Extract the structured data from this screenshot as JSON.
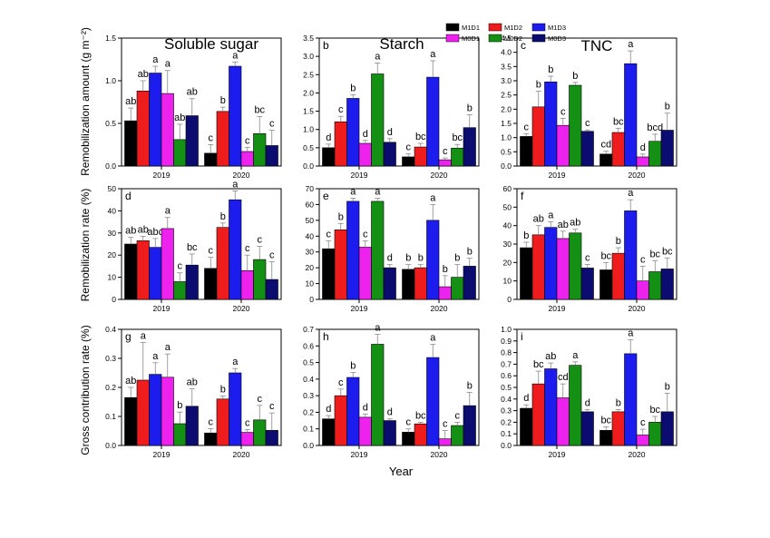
{
  "figure": {
    "ylabels": [
      "Remobilization amount (g m⁻²)",
      "Remobilization rate (%)",
      "Gross contribution rate (%)"
    ],
    "xlabel": "Year",
    "col_titles": [
      "Soluble sugar",
      "Starch",
      "TNC"
    ],
    "legend": [
      {
        "name": "M1D1",
        "color": "#000000"
      },
      {
        "name": "M1D2",
        "color": "#ee1c1c"
      },
      {
        "name": "M1D3",
        "color": "#1c1cee"
      },
      {
        "name": "M0D1",
        "color": "#ee22ee"
      },
      {
        "name": "M0D2",
        "color": "#149114"
      },
      {
        "name": "M0D3",
        "color": "#0b0b70"
      }
    ]
  },
  "chart_data": [
    {
      "type": "bar",
      "row": 0,
      "col": 0,
      "panel_letter": "",
      "categories": [
        "2019",
        "2020"
      ],
      "ylim": [
        0,
        1.5
      ],
      "yticks": [
        "0.0",
        "0.5",
        "1.0",
        "1.5"
      ],
      "series": [
        {
          "name": "M1D1",
          "values": [
            0.53,
            0.15
          ],
          "err": [
            0.15,
            0.1
          ],
          "labels": [
            "ab",
            "c"
          ]
        },
        {
          "name": "M1D2",
          "values": [
            0.88,
            0.64
          ],
          "err": [
            0.12,
            0.05
          ],
          "labels": [
            "ab",
            "b"
          ]
        },
        {
          "name": "M1D3",
          "values": [
            1.09,
            1.17
          ],
          "err": [
            0.08,
            0.05
          ],
          "labels": [
            "a",
            "a"
          ]
        },
        {
          "name": "M0D1",
          "values": [
            0.85,
            0.17
          ],
          "err": [
            0.27,
            0.05
          ],
          "labels": [
            "a",
            "c"
          ]
        },
        {
          "name": "M0D2",
          "values": [
            0.31,
            0.38
          ],
          "err": [
            0.18,
            0.2
          ],
          "labels": [
            "ab",
            "bc"
          ]
        },
        {
          "name": "M0D3",
          "values": [
            0.59,
            0.24
          ],
          "err": [
            0.2,
            0.18
          ],
          "labels": [
            "ab",
            "c"
          ]
        }
      ]
    },
    {
      "type": "bar",
      "row": 0,
      "col": 1,
      "panel_letter": "b",
      "categories": [
        "2019",
        "2020"
      ],
      "ylim": [
        0,
        3.5
      ],
      "yticks": [
        "0.0",
        "0.5",
        "1.0",
        "1.5",
        "2.0",
        "2.5",
        "3.0",
        "3.5"
      ],
      "series": [
        {
          "name": "M1D1",
          "values": [
            0.5,
            0.25
          ],
          "err": [
            0.1,
            0.08
          ],
          "labels": [
            "d",
            "c"
          ]
        },
        {
          "name": "M1D2",
          "values": [
            1.21,
            0.52
          ],
          "err": [
            0.15,
            0.1
          ],
          "labels": [
            "c",
            "bc"
          ]
        },
        {
          "name": "M1D3",
          "values": [
            1.85,
            2.43
          ],
          "err": [
            0.1,
            0.45
          ],
          "labels": [
            "b",
            "a"
          ]
        },
        {
          "name": "M0D1",
          "values": [
            0.62,
            0.17
          ],
          "err": [
            0.08,
            0.05
          ],
          "labels": [
            "d",
            "c"
          ]
        },
        {
          "name": "M0D2",
          "values": [
            2.52,
            0.49
          ],
          "err": [
            0.3,
            0.1
          ],
          "labels": [
            "a",
            "bc"
          ]
        },
        {
          "name": "M0D3",
          "values": [
            0.65,
            1.05
          ],
          "err": [
            0.1,
            0.35
          ],
          "labels": [
            "d",
            "b"
          ]
        }
      ]
    },
    {
      "type": "bar",
      "row": 0,
      "col": 2,
      "panel_letter": "c",
      "categories": [
        "2019",
        "2020"
      ],
      "ylim": [
        0,
        4.5
      ],
      "yticks": [
        "0.0",
        "0.5",
        "1.0",
        "1.5",
        "2.0",
        "2.5",
        "3.0",
        "3.5",
        "4.0",
        "4.5"
      ],
      "series": [
        {
          "name": "M1D1",
          "values": [
            1.04,
            0.42
          ],
          "err": [
            0.1,
            0.1
          ],
          "labels": [
            "c",
            "cd"
          ]
        },
        {
          "name": "M1D2",
          "values": [
            2.08,
            1.18
          ],
          "err": [
            0.55,
            0.15
          ],
          "labels": [
            "b",
            "bc"
          ]
        },
        {
          "name": "M1D3",
          "values": [
            2.96,
            3.6
          ],
          "err": [
            0.2,
            0.45
          ],
          "labels": [
            "b",
            "a"
          ]
        },
        {
          "name": "M0D1",
          "values": [
            1.43,
            0.32
          ],
          "err": [
            0.25,
            0.1
          ],
          "labels": [
            "c",
            "d"
          ]
        },
        {
          "name": "M0D2",
          "values": [
            2.84,
            0.87
          ],
          "err": [
            0.1,
            0.25
          ],
          "labels": [
            "b",
            "bcd"
          ]
        },
        {
          "name": "M0D3",
          "values": [
            1.22,
            1.26
          ],
          "err": [
            0.05,
            0.6
          ],
          "labels": [
            "c",
            "b"
          ]
        }
      ]
    },
    {
      "type": "bar",
      "row": 1,
      "col": 0,
      "panel_letter": "d",
      "categories": [
        "2019",
        "2020"
      ],
      "ylim": [
        0,
        50
      ],
      "yticks": [
        "0",
        "10",
        "20",
        "30",
        "40",
        "50"
      ],
      "series": [
        {
          "name": "M1D1",
          "values": [
            25,
            14
          ],
          "err": [
            3,
            5
          ],
          "labels": [
            "ab",
            "c"
          ]
        },
        {
          "name": "M1D2",
          "values": [
            26.5,
            32.5
          ],
          "err": [
            2,
            2
          ],
          "labels": [
            "ab",
            "b"
          ]
        },
        {
          "name": "M1D3",
          "values": [
            23.5,
            45
          ],
          "err": [
            4,
            4
          ],
          "labels": [
            "abc",
            "a"
          ]
        },
        {
          "name": "M0D1",
          "values": [
            32,
            13
          ],
          "err": [
            5,
            7
          ],
          "labels": [
            "a",
            "c"
          ]
        },
        {
          "name": "M0D2",
          "values": [
            8,
            18
          ],
          "err": [
            4,
            6
          ],
          "labels": [
            "c",
            "c"
          ]
        },
        {
          "name": "M0D3",
          "values": [
            15.5,
            9
          ],
          "err": [
            5,
            8
          ],
          "labels": [
            "bc",
            "c"
          ]
        }
      ]
    },
    {
      "type": "bar",
      "row": 1,
      "col": 1,
      "panel_letter": "e",
      "categories": [
        "2019",
        "2020"
      ],
      "ylim": [
        0,
        70
      ],
      "yticks": [
        "0",
        "10",
        "20",
        "30",
        "40",
        "50",
        "60",
        "70"
      ],
      "series": [
        {
          "name": "M1D1",
          "values": [
            32,
            19
          ],
          "err": [
            5,
            3
          ],
          "labels": [
            "c",
            "b"
          ]
        },
        {
          "name": "M1D2",
          "values": [
            44,
            20
          ],
          "err": [
            4,
            2
          ],
          "labels": [
            "b",
            "b"
          ]
        },
        {
          "name": "M1D3",
          "values": [
            62,
            50
          ],
          "err": [
            2,
            10
          ],
          "labels": [
            "a",
            "a"
          ]
        },
        {
          "name": "M0D1",
          "values": [
            33,
            8
          ],
          "err": [
            4,
            7
          ],
          "labels": [
            "c",
            "b"
          ]
        },
        {
          "name": "M0D2",
          "values": [
            62,
            14
          ],
          "err": [
            2,
            8
          ],
          "labels": [
            "a",
            "b"
          ]
        },
        {
          "name": "M0D3",
          "values": [
            20,
            21
          ],
          "err": [
            2,
            5
          ],
          "labels": [
            "d",
            "b"
          ]
        }
      ]
    },
    {
      "type": "bar",
      "row": 1,
      "col": 2,
      "panel_letter": "f",
      "categories": [
        "2019",
        "2020"
      ],
      "ylim": [
        0,
        60
      ],
      "yticks": [
        "0",
        "10",
        "20",
        "30",
        "40",
        "50",
        "60"
      ],
      "series": [
        {
          "name": "M1D1",
          "values": [
            28,
            16
          ],
          "err": [
            3,
            4
          ],
          "labels": [
            "b",
            "bc"
          ]
        },
        {
          "name": "M1D2",
          "values": [
            35,
            25
          ],
          "err": [
            5,
            3
          ],
          "labels": [
            "ab",
            "b"
          ]
        },
        {
          "name": "M1D3",
          "values": [
            39,
            48
          ],
          "err": [
            3,
            6
          ],
          "labels": [
            "a",
            "a"
          ]
        },
        {
          "name": "M0D1",
          "values": [
            33,
            10
          ],
          "err": [
            4,
            8
          ],
          "labels": [
            "ab",
            "c"
          ]
        },
        {
          "name": "M0D2",
          "values": [
            36,
            15
          ],
          "err": [
            2,
            6
          ],
          "labels": [
            "ab",
            "bc"
          ]
        },
        {
          "name": "M0D3",
          "values": [
            17,
            16.5
          ],
          "err": [
            2,
            6
          ],
          "labels": [
            "c",
            "bc"
          ]
        }
      ]
    },
    {
      "type": "bar",
      "row": 2,
      "col": 0,
      "panel_letter": "g",
      "categories": [
        "2019",
        "2020"
      ],
      "ylim": [
        0,
        0.4
      ],
      "yticks": [
        "0.0",
        "0.1",
        "0.2",
        "0.3",
        "0.4"
      ],
      "series": [
        {
          "name": "M1D1",
          "values": [
            0.165,
            0.043
          ],
          "err": [
            0.035,
            0.015
          ],
          "labels": [
            "ab",
            "c"
          ]
        },
        {
          "name": "M1D2",
          "values": [
            0.225,
            0.16
          ],
          "err": [
            0.13,
            0.01
          ],
          "labels": [
            "a",
            "b"
          ]
        },
        {
          "name": "M1D3",
          "values": [
            0.245,
            0.25
          ],
          "err": [
            0.04,
            0.015
          ],
          "labels": [
            "a",
            "a"
          ]
        },
        {
          "name": "M0D1",
          "values": [
            0.235,
            0.045
          ],
          "err": [
            0.08,
            0.01
          ],
          "labels": [
            "a",
            "c"
          ]
        },
        {
          "name": "M0D2",
          "values": [
            0.075,
            0.088
          ],
          "err": [
            0.04,
            0.05
          ],
          "labels": [
            "b",
            "c"
          ]
        },
        {
          "name": "M0D3",
          "values": [
            0.135,
            0.052
          ],
          "err": [
            0.06,
            0.06
          ],
          "labels": [
            "ab",
            "c"
          ]
        }
      ]
    },
    {
      "type": "bar",
      "row": 2,
      "col": 1,
      "panel_letter": "h",
      "categories": [
        "2019",
        "2020"
      ],
      "ylim": [
        0,
        0.7
      ],
      "yticks": [
        "0.0",
        "0.1",
        "0.2",
        "0.3",
        "0.4",
        "0.5",
        "0.6",
        "0.7"
      ],
      "series": [
        {
          "name": "M1D1",
          "values": [
            0.16,
            0.08
          ],
          "err": [
            0.02,
            0.02
          ],
          "labels": [
            "d",
            "c"
          ]
        },
        {
          "name": "M1D2",
          "values": [
            0.3,
            0.13
          ],
          "err": [
            0.04,
            0.01
          ],
          "labels": [
            "c",
            "bc"
          ]
        },
        {
          "name": "M1D3",
          "values": [
            0.41,
            0.53
          ],
          "err": [
            0.03,
            0.08
          ],
          "labels": [
            "b",
            "a"
          ]
        },
        {
          "name": "M0D1",
          "values": [
            0.17,
            0.04
          ],
          "err": [
            0.02,
            0.05
          ],
          "labels": [
            "d",
            "c"
          ]
        },
        {
          "name": "M0D2",
          "values": [
            0.61,
            0.12
          ],
          "err": [
            0.06,
            0.02
          ],
          "labels": [
            "a",
            "c"
          ]
        },
        {
          "name": "M0D3",
          "values": [
            0.15,
            0.24
          ],
          "err": [
            0.01,
            0.08
          ],
          "labels": [
            "d",
            "b"
          ]
        }
      ]
    },
    {
      "type": "bar",
      "row": 2,
      "col": 2,
      "panel_letter": "i",
      "categories": [
        "2019",
        "2020"
      ],
      "ylim": [
        0,
        1.0
      ],
      "yticks": [
        "0.0",
        "0.1",
        "0.2",
        "0.3",
        "0.4",
        "0.5",
        "0.6",
        "0.7",
        "0.8",
        "0.9",
        "1.0"
      ],
      "series": [
        {
          "name": "M1D1",
          "values": [
            0.32,
            0.13
          ],
          "err": [
            0.03,
            0.03
          ],
          "labels": [
            "d",
            "bc"
          ]
        },
        {
          "name": "M1D2",
          "values": [
            0.53,
            0.29
          ],
          "err": [
            0.11,
            0.02
          ],
          "labels": [
            "bc",
            "b"
          ]
        },
        {
          "name": "M1D3",
          "values": [
            0.66,
            0.79
          ],
          "err": [
            0.05,
            0.12
          ],
          "labels": [
            "ab",
            "a"
          ]
        },
        {
          "name": "M0D1",
          "values": [
            0.41,
            0.09
          ],
          "err": [
            0.12,
            0.05
          ],
          "labels": [
            "cd",
            "c"
          ]
        },
        {
          "name": "M0D2",
          "values": [
            0.69,
            0.2
          ],
          "err": [
            0.03,
            0.05
          ],
          "labels": [
            "a",
            "bc"
          ]
        },
        {
          "name": "M0D3",
          "values": [
            0.29,
            0.29
          ],
          "err": [
            0.02,
            0.16
          ],
          "labels": [
            "d",
            "b"
          ]
        }
      ]
    }
  ]
}
